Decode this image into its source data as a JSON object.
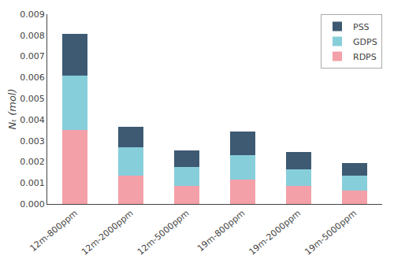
{
  "chart_data": {
    "type": "bar",
    "stacked": true,
    "categories": [
      "12m-800ppm",
      "12m-2000ppm",
      "12m-5000ppm",
      "19m-800ppm",
      "19m-2000ppm",
      "19m-5000ppm"
    ],
    "series": [
      {
        "name": "RDPS",
        "color": "#F4A0A8",
        "values": [
          0.0035,
          0.00135,
          0.00085,
          0.00115,
          0.00085,
          0.00065
        ]
      },
      {
        "name": "GDPS",
        "color": "#87CEDB",
        "values": [
          0.0026,
          0.00135,
          0.0009,
          0.00115,
          0.0008,
          0.0007
        ]
      },
      {
        "name": "PSS",
        "color": "#3D5A72",
        "values": [
          0.00195,
          0.00095,
          0.0008,
          0.00115,
          0.0008,
          0.0006
        ]
      }
    ],
    "ylabel": "Nₜ (mol)",
    "ylim": [
      0,
      0.009
    ],
    "yticks": [
      {
        "value": 0,
        "label": "0.000"
      },
      0.001,
      0.002,
      0.003,
      0.004,
      0.005,
      0.006,
      0.007,
      0.008,
      0.009
    ],
    "legend": "upper right",
    "grid": false
  }
}
